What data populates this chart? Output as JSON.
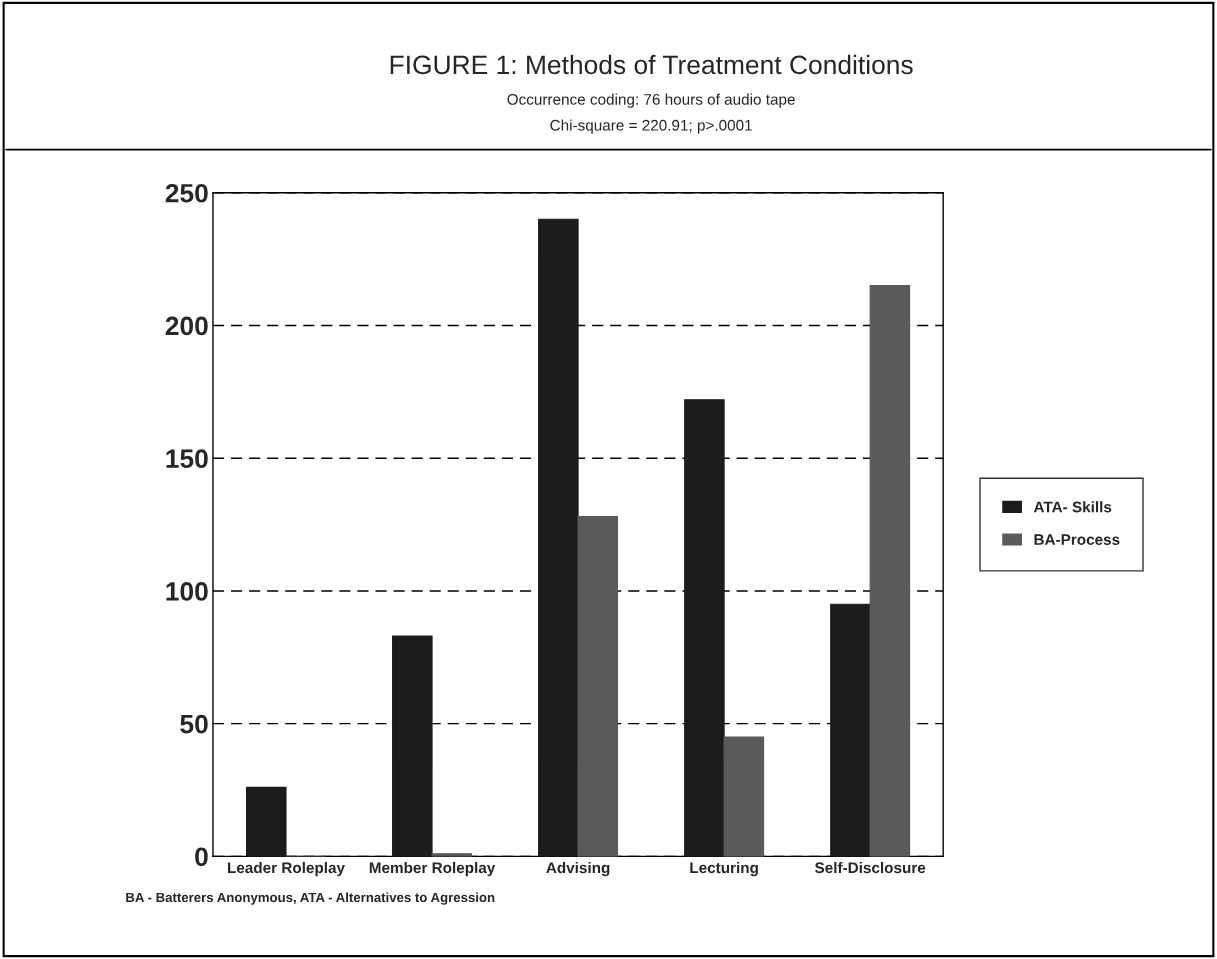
{
  "chart_data": {
    "type": "bar",
    "title": "FIGURE 1: Methods of Treatment Conditions",
    "subtitle": "Occurrence coding: 76 hours of audio tape",
    "annotations": [
      "Chi-square = 220.91; p>.0001",
      "BA - Batterers Anonymous, ATA - Alternatives to Agression"
    ],
    "categories": [
      "Leader Roleplay",
      "Member Roleplay",
      "Advising",
      "Lecturing",
      "Self-Disclosure"
    ],
    "series": [
      {
        "name": "ATA- Skills",
        "color": "#1c1c1c",
        "values": [
          26,
          83,
          240,
          172,
          95
        ]
      },
      {
        "name": "BA-Process",
        "color": "#5a5a5a",
        "values": [
          0,
          1,
          128,
          45,
          215
        ]
      }
    ],
    "ylim": [
      0,
      250
    ],
    "yticks": [
      0,
      50,
      100,
      150,
      200,
      250
    ],
    "grid": "y",
    "legend": "right"
  }
}
